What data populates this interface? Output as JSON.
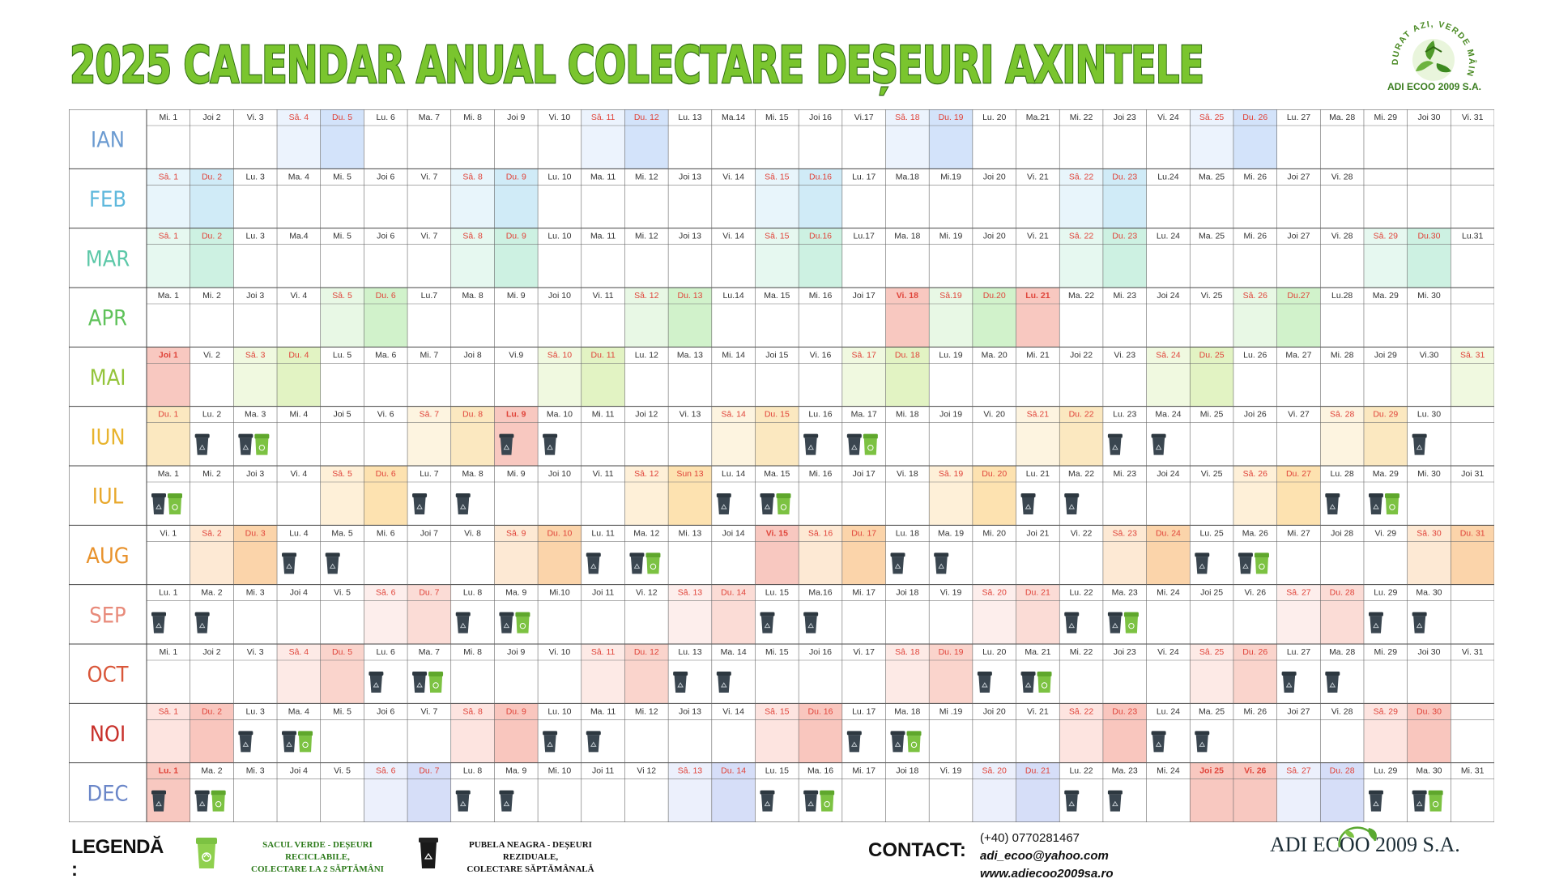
{
  "title": "2025 CALENDAR ANUAL COLECTARE DEȘEURI AXINTELE",
  "logo": {
    "ring_text": "DURAT AZI, VERDE MÂINE.",
    "name": "ADI ECOO 2009 S.A."
  },
  "colors": {
    "title_fill": "#7ac52e",
    "title_stroke": "#2f6a12",
    "black_bin": "#3a4650",
    "green_bag": "#7cc242",
    "holiday": "#f8c8c0",
    "holiday_text": "#e0443a"
  },
  "months": [
    {
      "name": "IAN",
      "color": "#6b9bd1",
      "sat_bg": "#ecf3fd",
      "sun_bg": "#d3e3fa",
      "wk_text": "#e0443a",
      "days": [
        "Mi. 1",
        "Joi 2",
        "Vi. 3",
        "Sâ. 4",
        "Du. 5",
        "Lu. 6",
        "Ma. 7",
        "Mi. 8",
        "Joi 9",
        "Vi. 10",
        "Sâ. 11",
        "Du. 12",
        "Lu. 13",
        "Ma.14",
        "Mi. 15",
        "Joi 16",
        "Vi.17",
        "Sâ. 18",
        "Du. 19",
        "Lu. 20",
        "Ma.21",
        "Mi. 22",
        "Joi 23",
        "Vi. 24",
        "Sâ. 25",
        "Du. 26",
        "Lu. 27",
        "Ma. 28",
        "Mi. 29",
        "Joi 30",
        "Vi. 31"
      ],
      "weekends": [
        4,
        5,
        11,
        12,
        18,
        19,
        25,
        26
      ],
      "holidays": [],
      "black": [],
      "green": []
    },
    {
      "name": "FEB",
      "color": "#5eb8dc",
      "sat_bg": "#e8f5fb",
      "sun_bg": "#d0ebf7",
      "wk_text": "#e0443a",
      "days": [
        "Sâ. 1",
        "Du. 2",
        "Lu. 3",
        "Ma. 4",
        "Mi. 5",
        "Joi 6",
        "Vi. 7",
        "Sâ. 8",
        "Du. 9",
        "Lu. 10",
        "Ma. 11",
        "Mi. 12",
        "Joi 13",
        "Vi. 14",
        "Sâ. 15",
        "Du.16",
        "Lu. 17",
        "Ma.18",
        "Mi.19",
        "Joi 20",
        "Vi. 21",
        "Sâ. 22",
        "Du. 23",
        "Lu.24",
        "Ma. 25",
        "Mi. 26",
        "Joi 27",
        "Vi. 28"
      ],
      "weekends": [
        1,
        2,
        8,
        9,
        15,
        16,
        22,
        23
      ],
      "holidays": [],
      "black": [],
      "green": []
    },
    {
      "name": "MAR",
      "color": "#5cc8a8",
      "sat_bg": "#e6f8f0",
      "sun_bg": "#cdf1e2",
      "wk_text": "#e0443a",
      "days": [
        "Sâ. 1",
        "Du. 2",
        "Lu. 3",
        "Ma.4",
        "Mi. 5",
        "Joi 6",
        "Vi. 7",
        "Sâ. 8",
        "Du. 9",
        "Lu. 10",
        "Ma. 11",
        "Mi. 12",
        "Joi 13",
        "Vi. 14",
        "Sâ. 15",
        "Du.16",
        "Lu.17",
        "Ma. 18",
        "Mi. 19",
        "Joi 20",
        "Vi. 21",
        "Sâ. 22",
        "Du. 23",
        "Lu. 24",
        "Ma. 25",
        "Mi. 26",
        "Joi 27",
        "Vi. 28",
        "Sâ. 29",
        "Du.30",
        "Lu.31"
      ],
      "weekends": [
        1,
        2,
        8,
        9,
        15,
        16,
        22,
        23,
        29,
        30
      ],
      "holidays": [],
      "black": [],
      "green": []
    },
    {
      "name": "APR",
      "color": "#5fc25a",
      "sat_bg": "#e8f8e5",
      "sun_bg": "#d1f2cb",
      "wk_text": "#e0443a",
      "days": [
        "Ma. 1",
        "Mi. 2",
        "Joi 3",
        "Vi. 4",
        "Sâ. 5",
        "Du. 6",
        "Lu.7",
        "Ma. 8",
        "Mi. 9",
        "Joi 10",
        "Vi. 11",
        "Sâ. 12",
        "Du. 13",
        "Lu.14",
        "Ma. 15",
        "Mi. 16",
        "Joi 17",
        "Vi. 18",
        "Sâ.19",
        "Du.20",
        "Lu. 21",
        "Ma. 22",
        "Mi. 23",
        "Joi 24",
        "Vi. 25",
        "Sâ. 26",
        "Du.27",
        "Lu.28",
        "Ma. 29",
        "Mi. 30"
      ],
      "weekends": [
        5,
        6,
        12,
        13,
        19,
        20,
        26,
        27
      ],
      "holidays": [
        18,
        21
      ],
      "black": [],
      "green": []
    },
    {
      "name": "MAI",
      "color": "#94c43a",
      "sat_bg": "#f0f9e0",
      "sun_bg": "#e2f3c3",
      "wk_text": "#e0443a",
      "days": [
        "Joi 1",
        "Vi. 2",
        "Sâ. 3",
        "Du. 4",
        "Lu. 5",
        "Ma. 6",
        "Mi. 7",
        "Joi 8",
        "Vi.9",
        "Sâ. 10",
        "Du. 11",
        "Lu. 12",
        "Ma. 13",
        "Mi. 14",
        "Joi 15",
        "Vi. 16",
        "Sâ. 17",
        "Du. 18",
        "Lu. 19",
        "Ma. 20",
        "Mi. 21",
        "Joi 22",
        "Vi. 23",
        "Sâ. 24",
        "Du. 25",
        "Lu. 26",
        "Ma. 27",
        "Mi. 28",
        "Joi 29",
        "Vi.30",
        "Sâ. 31"
      ],
      "weekends": [
        3,
        4,
        10,
        11,
        17,
        18,
        24,
        25,
        31
      ],
      "holidays": [
        1
      ],
      "black": [],
      "green": []
    },
    {
      "name": "IUN",
      "color": "#e8b42e",
      "sat_bg": "#fdf4e0",
      "sun_bg": "#fbe8c0",
      "wk_text": "#e0443a",
      "days": [
        "Du. 1",
        "Lu. 2",
        "Ma. 3",
        "Mi. 4",
        "Joi 5",
        "Vi. 6",
        "Sâ. 7",
        "Du. 8",
        "Lu. 9",
        "Ma. 10",
        "Mi. 11",
        "Joi 12",
        "Vi. 13",
        "Sâ. 14",
        "Du. 15",
        "Lu. 16",
        "Ma. 17",
        "Mi. 18",
        "Joi 19",
        "Vi. 20",
        "Sâ.21",
        "Du. 22",
        "Lu. 23",
        "Ma. 24",
        "Mi. 25",
        "Joi 26",
        "Vi. 27",
        "Sâ. 28",
        "Du. 29",
        "Lu. 30"
      ],
      "weekends": [
        1,
        7,
        8,
        14,
        15,
        21,
        22,
        28,
        29
      ],
      "holidays": [
        9
      ],
      "black": [
        2,
        3,
        9,
        10,
        16,
        17,
        23,
        24,
        30
      ],
      "green": [
        3,
        17
      ]
    },
    {
      "name": "IUL",
      "color": "#e8a82c",
      "sat_bg": "#fef0d8",
      "sun_bg": "#fde2b0",
      "wk_text": "#e0443a",
      "days": [
        "Ma. 1",
        "Mi. 2",
        "Joi 3",
        "Vi. 4",
        "Sâ. 5",
        "Du. 6",
        "Lu. 7",
        "Ma. 8",
        "Mi. 9",
        "Joi 10",
        "Vi. 11",
        "Sâ. 12",
        "Sun 13",
        "Lu. 14",
        "Ma. 15",
        "Mi. 16",
        "Joi 17",
        "Vi. 18",
        "Sâ. 19",
        "Du. 20",
        "Lu. 21",
        "Ma. 22",
        "Mi. 23",
        "Joi 24",
        "Vi. 25",
        "Sâ. 26",
        "Du. 27",
        "Lu. 28",
        "Ma. 29",
        "Mi. 30",
        "Joi 31"
      ],
      "weekends": [
        5,
        6,
        12,
        13,
        19,
        20,
        26,
        27
      ],
      "holidays": [],
      "black": [
        1,
        7,
        8,
        14,
        15,
        21,
        22,
        28,
        29
      ],
      "green": [
        1,
        15,
        29
      ]
    },
    {
      "name": "AUG",
      "color": "#e8922c",
      "sat_bg": "#fde9d4",
      "sun_bg": "#fbd4aa",
      "wk_text": "#e0443a",
      "days": [
        "Vi. 1",
        "Sâ. 2",
        "Du. 3",
        "Lu. 4",
        "Ma. 5",
        "Mi. 6",
        "Joi 7",
        "Vi. 8",
        "Sâ. 9",
        "Du. 10",
        "Lu. 11",
        "Ma. 12",
        "Mi. 13",
        "Joi 14",
        "Vi. 15",
        "Sâ. 16",
        "Du. 17",
        "Lu. 18",
        "Ma. 19",
        "Mi. 20",
        "Joi 21",
        "Vi. 22",
        "Sâ. 23",
        "Du. 24",
        "Lu. 25",
        "Ma. 26",
        "Mi. 27",
        "Joi 28",
        "Vi. 29",
        "Sâ. 30",
        "Du. 31"
      ],
      "weekends": [
        2,
        3,
        9,
        10,
        16,
        17,
        23,
        24,
        30,
        31
      ],
      "holidays": [
        15
      ],
      "black": [
        4,
        5,
        11,
        12,
        18,
        19,
        25,
        26
      ],
      "green": [
        12,
        26
      ]
    },
    {
      "name": "SEP",
      "color": "#e88a7a",
      "sat_bg": "#fdeeec",
      "sun_bg": "#fbdcd6",
      "wk_text": "#e0443a",
      "days": [
        "Lu. 1",
        "Ma. 2",
        "Mi. 3",
        "Joi 4",
        "Vi. 5",
        "Sâ. 6",
        "Du. 7",
        "Lu. 8",
        "Ma. 9",
        "Mi.10",
        "Joi 11",
        "Vi. 12",
        "Sâ. 13",
        "Du. 14",
        "Lu. 15",
        "Ma.16",
        "Mi. 17",
        "Joi 18",
        "Vi. 19",
        "Sâ. 20",
        "Du. 21",
        "Lu. 22",
        "Ma. 23",
        "Mi. 24",
        "Joi 25",
        "Vi. 26",
        "Sâ. 27",
        "Du. 28",
        "Lu. 29",
        "Ma. 30"
      ],
      "weekends": [
        6,
        7,
        13,
        14,
        20,
        21,
        27,
        28
      ],
      "holidays": [],
      "black": [
        1,
        2,
        8,
        9,
        15,
        16,
        22,
        23,
        29,
        30
      ],
      "green": [
        9,
        23
      ]
    },
    {
      "name": "OCT",
      "color": "#d9573a",
      "sat_bg": "#fdeae6",
      "sun_bg": "#fad4cc",
      "wk_text": "#e0443a",
      "days": [
        "Mi. 1",
        "Joi 2",
        "Vi. 3",
        "Sâ. 4",
        "Du. 5",
        "Lu. 6",
        "Ma. 7",
        "Mi. 8",
        "Joi 9",
        "Vi. 10",
        "Sâ. 11",
        "Du. 12",
        "Lu. 13",
        "Ma. 14",
        "Mi. 15",
        "Joi 16",
        "Vi. 17",
        "Sâ. 18",
        "Du. 19",
        "Lu. 20",
        "Ma. 21",
        "Mi. 22",
        "Joi 23",
        "Vi. 24",
        "Sâ. 25",
        "Du. 26",
        "Lu. 27",
        "Ma. 28",
        "Mi. 29",
        "Joi 30",
        "Vi. 31"
      ],
      "weekends": [
        4,
        5,
        11,
        12,
        18,
        19,
        25,
        26
      ],
      "holidays": [],
      "black": [
        6,
        7,
        13,
        14,
        20,
        21,
        27,
        28
      ],
      "green": [
        7,
        21
      ]
    },
    {
      "name": "NOI",
      "color": "#c8302a",
      "sat_bg": "#fde4e0",
      "sun_bg": "#f9c6be",
      "wk_text": "#e0443a",
      "days": [
        "Sâ. 1",
        "Du. 2",
        "Lu. 3",
        "Ma. 4",
        "Mi. 5",
        "Joi 6",
        "Vi. 7",
        "Sâ. 8",
        "Du. 9",
        "Lu. 10",
        "Ma. 11",
        "Mi. 12",
        "Joi 13",
        "Vi. 14",
        "Sâ. 15",
        "Du. 16",
        "Lu. 17",
        "Ma. 18",
        "Mi .19",
        "Joi 20",
        "Vi. 21",
        "Sâ. 22",
        "Du. 23",
        "Lu. 24",
        "Ma. 25",
        "Mi. 26",
        "Joi 27",
        "Vi. 28",
        "Sâ. 29",
        "Du. 30"
      ],
      "weekends": [
        1,
        2,
        8,
        9,
        15,
        16,
        22,
        23,
        29,
        30
      ],
      "holidays": [],
      "black": [
        3,
        4,
        10,
        11,
        17,
        18,
        24,
        25
      ],
      "green": [
        4,
        18
      ]
    },
    {
      "name": "DEC",
      "color": "#6a86c8",
      "sat_bg": "#ecf0fc",
      "sun_bg": "#d6def8",
      "wk_text": "#e0443a",
      "days": [
        "Lu. 1",
        "Ma. 2",
        "Mi. 3",
        "Joi 4",
        "Vi. 5",
        "Sâ. 6",
        "Du. 7",
        "Lu. 8",
        "Ma. 9",
        "Mi. 10",
        "Joi 11",
        "Vi 12",
        "Sâ. 13",
        "Du. 14",
        "Lu. 15",
        "Ma. 16",
        "Mi. 17",
        "Joi 18",
        "Vi. 19",
        "Sâ. 20",
        "Du. 21",
        "Lu. 22",
        "Ma. 23",
        "Mi. 24",
        "Joi 25",
        "Vi. 26",
        "Sâ. 27",
        "Du. 28",
        "Lu. 29",
        "Ma. 30",
        "Mi. 31"
      ],
      "weekends": [
        6,
        7,
        13,
        14,
        20,
        21,
        27,
        28
      ],
      "holidays": [
        1,
        25,
        26
      ],
      "black": [
        1,
        2,
        8,
        9,
        15,
        16,
        22,
        23,
        29,
        30
      ],
      "green": [
        2,
        16,
        30
      ]
    }
  ],
  "legend": {
    "label": "LEGENDĂ :",
    "green_line1": "SACUL VERDE - DEȘEURI RECICLABILE,",
    "green_line2": "COLECTARE LA 2 SĂPTĂMÂNI",
    "black_line1": "PUBELA NEAGRA - DEȘEURI REZIDUALE,",
    "black_line2": "COLECTARE SĂPTĂMÂNALĂ"
  },
  "contact": {
    "label": "CONTACT:",
    "phone": "(+40) 0770281467",
    "email": "adi_ecoo@yahoo.com",
    "web": "www.adiecoo2009sa.ro"
  },
  "brand": "ADI ECOO 2009 S.A."
}
